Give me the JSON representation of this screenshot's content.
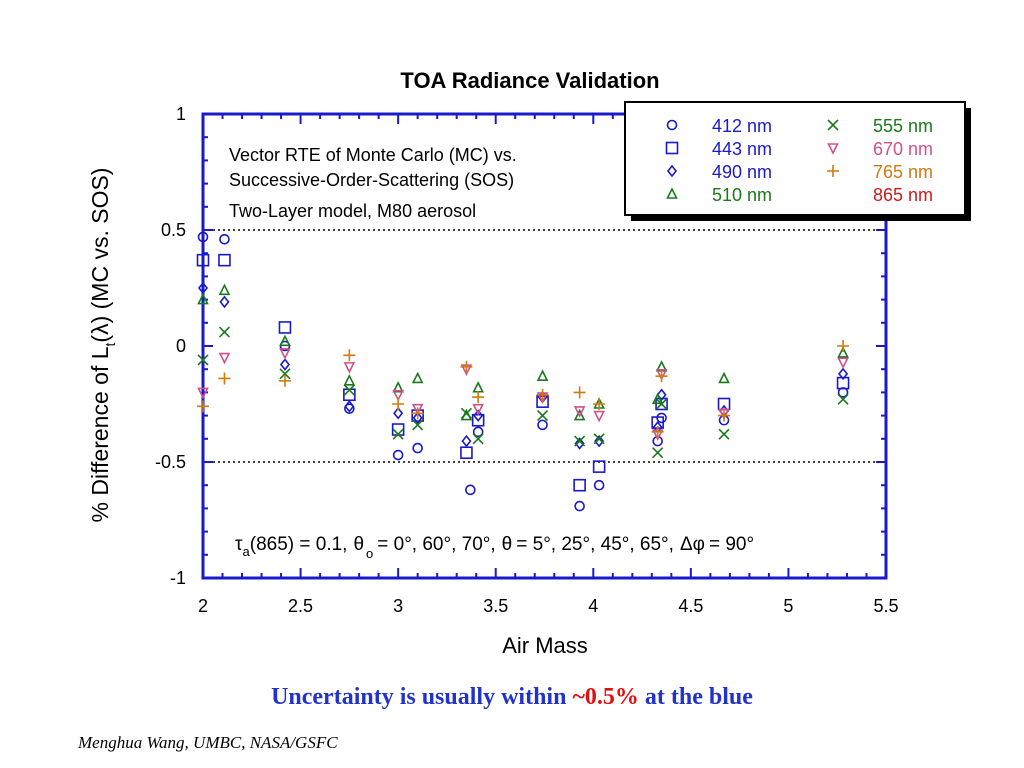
{
  "chart_data": {
    "type": "scatter",
    "title": "TOA Radiance Validation",
    "xlabel": "Air Mass",
    "ylabel": {
      "prefix": "% Difference of L",
      "subscript": "t",
      "lambda": "(λ)",
      "suffix": " (MC vs.  SOS)"
    },
    "xlim": [
      2,
      5.5
    ],
    "ylim": [
      -1,
      1
    ],
    "x_ticks": [
      "2",
      "2.5",
      "3",
      "3.5",
      "4",
      "4.5",
      "5",
      "5.5"
    ],
    "y_ticks": [
      "1",
      "0.5",
      "0",
      "-0.5",
      "-1"
    ],
    "reference_lines": [
      0.5,
      -0.5
    ],
    "legend_position": "top-right",
    "annotations": {
      "line1": "Vector RTE of Monte Carlo (MC) vs.",
      "line2": "Successive-Order-Scattering (SOS)",
      "line3": "Two-Layer model, M80 aerosol",
      "params": {
        "tau": "τ",
        "tau_sub": "a",
        "tau_rest": "(865) = 0.1,",
        "theta0": "θ",
        "theta0_sub": "o",
        "theta0_rest": "= 0°, 60°, 70°,",
        "theta": "θ",
        "theta_rest": "= 5°, 25°, 45°, 65°,",
        "dphi": "Δφ",
        "dphi_rest": "= 90°"
      }
    },
    "series": [
      {
        "name": "412 nm",
        "marker": "circle",
        "color": "#1a1acc",
        "points": [
          [
            2.0,
            0.47
          ],
          [
            2.11,
            0.46
          ],
          [
            2.42,
            0.0
          ],
          [
            2.75,
            -0.27
          ],
          [
            3.0,
            -0.47
          ],
          [
            3.1,
            -0.44
          ],
          [
            3.37,
            -0.62
          ],
          [
            3.41,
            -0.37
          ],
          [
            3.74,
            -0.34
          ],
          [
            3.93,
            -0.69
          ],
          [
            4.03,
            -0.6
          ],
          [
            4.33,
            -0.41
          ],
          [
            4.35,
            -0.31
          ],
          [
            4.67,
            -0.32
          ],
          [
            5.28,
            -0.2
          ]
        ]
      },
      {
        "name": "443 nm",
        "marker": "square",
        "color": "#1a1acc",
        "points": [
          [
            2.0,
            0.37
          ],
          [
            2.11,
            0.37
          ],
          [
            2.42,
            0.08
          ],
          [
            2.75,
            -0.21
          ],
          [
            3.0,
            -0.36
          ],
          [
            3.1,
            -0.3
          ],
          [
            3.35,
            -0.46
          ],
          [
            3.41,
            -0.32
          ],
          [
            3.74,
            -0.24
          ],
          [
            3.93,
            -0.6
          ],
          [
            4.03,
            -0.52
          ],
          [
            4.33,
            -0.33
          ],
          [
            4.35,
            -0.25
          ],
          [
            4.67,
            -0.25
          ],
          [
            5.28,
            -0.16
          ]
        ]
      },
      {
        "name": "490 nm",
        "marker": "diamond",
        "color": "#1a1acc",
        "points": [
          [
            2.0,
            0.25
          ],
          [
            2.11,
            0.19
          ],
          [
            2.42,
            -0.08
          ],
          [
            2.75,
            -0.26
          ],
          [
            3.0,
            -0.29
          ],
          [
            3.1,
            -0.31
          ],
          [
            3.35,
            -0.41
          ],
          [
            3.41,
            -0.3
          ],
          [
            3.74,
            -0.22
          ],
          [
            3.93,
            -0.42
          ],
          [
            4.03,
            -0.41
          ],
          [
            4.33,
            -0.35
          ],
          [
            4.35,
            -0.21
          ],
          [
            4.67,
            -0.28
          ],
          [
            5.28,
            -0.12
          ]
        ]
      },
      {
        "name": "510 nm",
        "marker": "triangle",
        "color": "#1a7a1a",
        "points": [
          [
            2.0,
            0.2
          ],
          [
            2.11,
            0.24
          ],
          [
            2.42,
            0.02
          ],
          [
            2.75,
            -0.15
          ],
          [
            3.0,
            -0.18
          ],
          [
            3.1,
            -0.14
          ],
          [
            3.35,
            -0.3
          ],
          [
            3.41,
            -0.18
          ],
          [
            3.74,
            -0.13
          ],
          [
            3.93,
            -0.3
          ],
          [
            4.03,
            -0.25
          ],
          [
            4.33,
            -0.23
          ],
          [
            4.35,
            -0.09
          ],
          [
            4.67,
            -0.14
          ],
          [
            5.28,
            -0.03
          ]
        ]
      },
      {
        "name": "555 nm",
        "marker": "x",
        "color": "#1a7a1a",
        "points": [
          [
            2.0,
            -0.06
          ],
          [
            2.11,
            0.06
          ],
          [
            2.42,
            -0.12
          ],
          [
            2.75,
            -0.19
          ],
          [
            3.0,
            -0.38
          ],
          [
            3.1,
            -0.34
          ],
          [
            3.35,
            -0.29
          ],
          [
            3.41,
            -0.4
          ],
          [
            3.74,
            -0.3
          ],
          [
            3.93,
            -0.41
          ],
          [
            4.03,
            -0.4
          ],
          [
            4.33,
            -0.46
          ],
          [
            4.35,
            -0.25
          ],
          [
            4.67,
            -0.38
          ],
          [
            5.28,
            -0.23
          ]
        ]
      },
      {
        "name": "670 nm",
        "marker": "triangle-down",
        "color": "#d0508a",
        "points": [
          [
            2.0,
            -0.2
          ],
          [
            2.11,
            -0.05
          ],
          [
            2.42,
            -0.03
          ],
          [
            2.75,
            -0.09
          ],
          [
            3.0,
            -0.21
          ],
          [
            3.1,
            -0.27
          ],
          [
            3.35,
            -0.1
          ],
          [
            3.41,
            -0.27
          ],
          [
            3.74,
            -0.22
          ],
          [
            3.93,
            -0.28
          ],
          [
            4.03,
            -0.3
          ],
          [
            4.33,
            -0.38
          ],
          [
            4.35,
            -0.12
          ],
          [
            4.67,
            -0.29
          ],
          [
            5.28,
            -0.07
          ]
        ]
      },
      {
        "name": "765 nm",
        "marker": "plus",
        "color": "#d07a10",
        "points": [
          [
            2.0,
            -0.26
          ],
          [
            2.11,
            -0.14
          ],
          [
            2.42,
            -0.15
          ],
          [
            2.75,
            -0.04
          ],
          [
            3.0,
            -0.25
          ],
          [
            3.1,
            -0.29
          ],
          [
            3.35,
            -0.09
          ],
          [
            3.41,
            -0.22
          ],
          [
            3.74,
            -0.21
          ],
          [
            3.93,
            -0.2
          ],
          [
            4.03,
            -0.25
          ],
          [
            4.33,
            -0.37
          ],
          [
            4.35,
            -0.13
          ],
          [
            4.67,
            -0.3
          ],
          [
            5.28,
            0.0
          ]
        ]
      },
      {
        "name": "865 nm",
        "marker": "none",
        "color": "#cc1a1a",
        "points": []
      }
    ]
  },
  "footer": {
    "caption_pre": "Uncertainty is usually within ",
    "caption_highlight": "~0.5%",
    "caption_post": " at the blue",
    "caption_color": "#2233cc",
    "highlight_color": "#e01010",
    "author": "Menghua Wang, UMBC, NASA/GSFC"
  }
}
